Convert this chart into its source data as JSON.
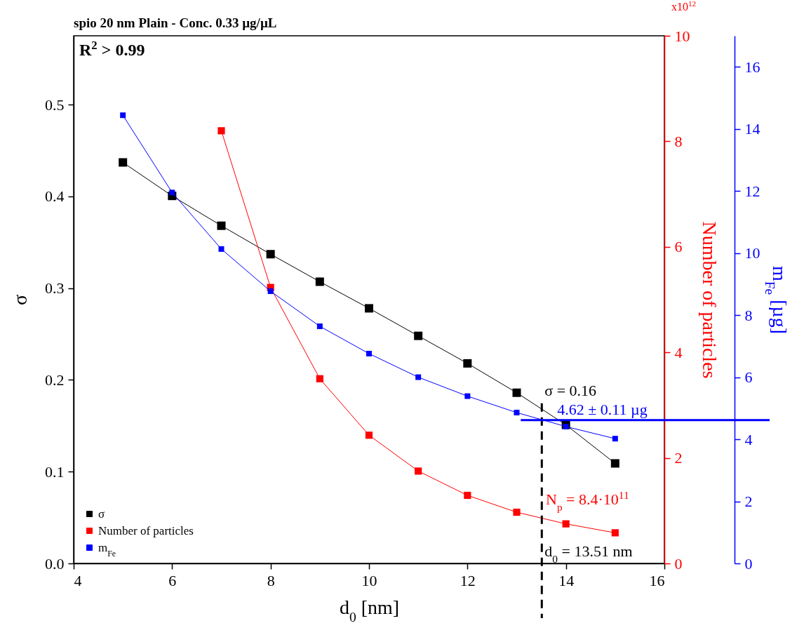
{
  "chart_data": {
    "type": "line",
    "title": "spio 20 nm Plain - Conc. 0.33 µg/µL",
    "xlabel": "d$_{0}$ [nm]",
    "ylabel": "σ",
    "y2label": "Number of particles",
    "y3label": "m$_{Fe}$ [µg]",
    "x": [
      5,
      6,
      7,
      8,
      9,
      10,
      11,
      12,
      13,
      14,
      15
    ],
    "series": [
      {
        "name": "σ",
        "color": "#000000",
        "axis": "y",
        "values": [
          0.437,
          0.4005,
          0.368,
          0.337,
          0.307,
          0.278,
          0.248,
          0.218,
          0.186,
          0.151,
          0.109
        ]
      },
      {
        "name": "Number of particles",
        "color": "#ff0000",
        "axis": "y2",
        "values": [
          null,
          null,
          8.2,
          5.23,
          3.5,
          2.43,
          1.75,
          1.29,
          0.97,
          0.75,
          0.58
        ]
      },
      {
        "name": "m$_{Fe}$",
        "color": "#0000ff",
        "axis": "y3",
        "values": [
          14.44,
          11.95,
          10.13,
          8.77,
          7.64,
          6.76,
          6.0,
          5.39,
          4.86,
          4.41,
          4.02
        ]
      }
    ],
    "xlim": [
      4,
      16
    ],
    "xticks": [
      4,
      6,
      8,
      10,
      12,
      14,
      16
    ],
    "ylim": [
      0,
      0.575
    ],
    "yticks": [
      {
        "value": 0,
        "label": "0.0"
      },
      0.1,
      0.2,
      0.3,
      0.4,
      0.5
    ],
    "y2lim": [
      0,
      10
    ],
    "y2ticks": [
      0,
      2,
      4,
      6,
      8,
      10
    ],
    "y3lim": [
      0,
      17
    ],
    "y3ticks": [
      0,
      2,
      4,
      6,
      8,
      10,
      12,
      14,
      16
    ],
    "marker": "square",
    "grid": false,
    "legend": "bottom left",
    "ref_lines": [
      {
        "axis": "x",
        "value": 13.51,
        "label": "d$_{0}$ = 13.51 nm",
        "color": "#000000",
        "line_style": "dashed"
      },
      {
        "axis": "y3",
        "value": 4.62,
        "label": "4.62 ± 0.11 µg",
        "color": "#0000ff",
        "line_style": "solid"
      }
    ],
    "annotations": [
      "R$^{2}$ > 0.99",
      {
        "text": "σ = 0.16",
        "x": 13.51,
        "y": 0.16
      },
      "N$_{p}$ = 8.4·10$^{11}$",
      "x10$^{12}$"
    ]
  }
}
